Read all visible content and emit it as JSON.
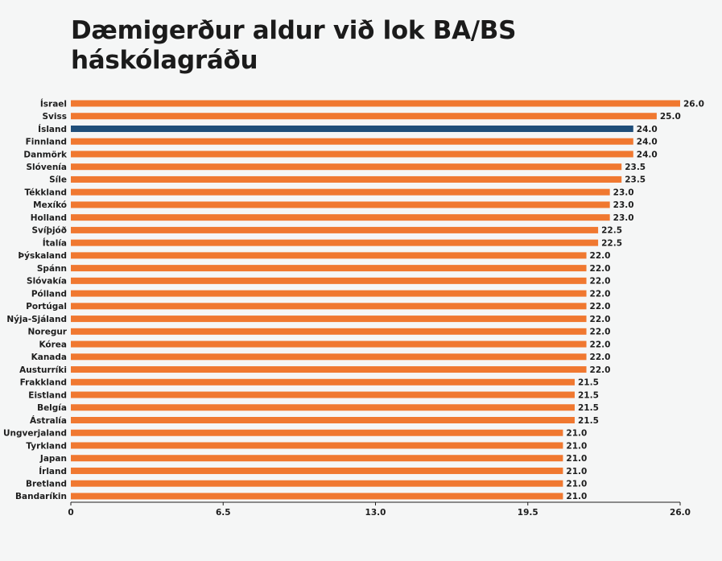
{
  "chart_data": {
    "type": "bar",
    "orientation": "horizontal",
    "title": "Dæmigerður aldur við lok BA/BS háskólagráðu",
    "categories": [
      "Ísrael",
      "Sviss",
      "Ísland",
      "Finnland",
      "Danmörk",
      "Slóvenía",
      "Síle",
      "Tékkland",
      "Mexíkó",
      "Holland",
      "Svíþjóð",
      "Ítalía",
      "Þýskaland",
      "Spánn",
      "Slóvakía",
      "Pólland",
      "Portúgal",
      "Nýja-Sjáland",
      "Noregur",
      "Kórea",
      "Kanada",
      "Austurríki",
      "Frakkland",
      "Eistland",
      "Belgía",
      "Ástralía",
      "Ungverjaland",
      "Tyrkland",
      "Japan",
      "Írland",
      "Bretland",
      "Bandaríkin"
    ],
    "values": [
      26.0,
      25.0,
      24.0,
      24.0,
      24.0,
      23.5,
      23.5,
      23.0,
      23.0,
      23.0,
      22.5,
      22.5,
      22.0,
      22.0,
      22.0,
      22.0,
      22.0,
      22.0,
      22.0,
      22.0,
      22.0,
      22.0,
      21.5,
      21.5,
      21.5,
      21.5,
      21.0,
      21.0,
      21.0,
      21.0,
      21.0,
      21.0
    ],
    "value_labels": [
      "26.0",
      "25.0",
      "24.0",
      "24.0",
      "24.0",
      "23.5",
      "23.5",
      "23.0",
      "23.0",
      "23.0",
      "22.5",
      "22.5",
      "22.0",
      "22.0",
      "22.0",
      "22.0",
      "22.0",
      "22.0",
      "22.0",
      "22.0",
      "22.0",
      "22.0",
      "21.5",
      "21.5",
      "21.5",
      "21.5",
      "21.0",
      "21.0",
      "21.0",
      "21.0",
      "21.0",
      "21.0"
    ],
    "highlight": "Ísland",
    "xlim": [
      0,
      26.0
    ],
    "xticks": [
      0,
      6.5,
      13.0,
      19.5,
      26.0
    ],
    "xtick_labels": [
      "0",
      "6.5",
      "13.0",
      "19.5",
      "26.0"
    ],
    "grid": false,
    "legend": "none",
    "colors": {
      "bar": "#f07830",
      "highlight": "#1f4e79",
      "axis": "#1e1e1e",
      "text": "#1e1e1e"
    }
  }
}
